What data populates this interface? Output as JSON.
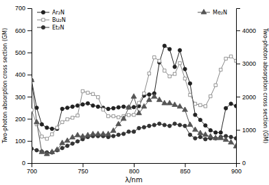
{
  "chart_data": {
    "type": "line",
    "xlabel": "λ/nm",
    "ylabel": "Two-photon absorption cross section (GM)",
    "y2label": "Two-photon absorption cross section (GM)",
    "xlim": [
      700,
      900
    ],
    "xticks": [
      700,
      750,
      800,
      850,
      900
    ],
    "ylim": [
      0,
      700
    ],
    "yticks": [
      0,
      100,
      200,
      300,
      400,
      500,
      600,
      700
    ],
    "y2lim": [
      0,
      4667
    ],
    "y2ticks": [
      0,
      1000,
      2000,
      3000,
      4000
    ],
    "legend": "top-left",
    "x": [
      700,
      705,
      710,
      715,
      720,
      725,
      730,
      735,
      740,
      745,
      750,
      755,
      760,
      765,
      770,
      775,
      780,
      785,
      790,
      795,
      800,
      805,
      810,
      815,
      820,
      825,
      830,
      835,
      840,
      845,
      850,
      855,
      860,
      865,
      870,
      875,
      880,
      885,
      890,
      895,
      900
    ],
    "series": [
      {
        "name": "Ar₂N",
        "color": "#222222",
        "marker": "circle",
        "values": [
          375,
          250,
          175,
          160,
          155,
          155,
          245,
          250,
          255,
          260,
          265,
          270,
          260,
          255,
          250,
          245,
          248,
          252,
          255,
          252,
          253,
          258,
          305,
          310,
          315,
          455,
          530,
          515,
          435,
          510,
          425,
          360,
          218,
          195,
          170,
          148,
          138,
          138,
          248,
          268,
          258
        ]
      },
      {
        "name": "Bu₂N",
        "color": "#888888",
        "marker": "square-open",
        "values": [
          240,
          175,
          120,
          110,
          130,
          160,
          185,
          198,
          205,
          215,
          325,
          318,
          312,
          298,
          242,
          212,
          212,
          207,
          212,
          217,
          218,
          272,
          315,
          405,
          478,
          462,
          418,
          392,
          403,
          452,
          382,
          308,
          268,
          262,
          257,
          302,
          352,
          422,
          472,
          482,
          462
        ]
      },
      {
        "name": "Et₂N",
        "color": "#333333",
        "marker": "circle",
        "values": [
          65,
          58,
          52,
          48,
          48,
          58,
          68,
          78,
          88,
          98,
          108,
          118,
          122,
          122,
          122,
          118,
          122,
          128,
          132,
          142,
          142,
          158,
          162,
          168,
          172,
          178,
          172,
          168,
          178,
          172,
          168,
          128,
          112,
          118,
          108,
          112,
          112,
          118,
          122,
          118,
          112
        ]
      },
      {
        "name": "Me₂N",
        "color": "#555555",
        "marker": "triangle",
        "axis": "y2",
        "values": [
          2500,
          1230,
          330,
          270,
          330,
          400,
          600,
          670,
          770,
          835,
          800,
          835,
          870,
          870,
          870,
          870,
          970,
          1170,
          1330,
          1670,
          2000,
          1500,
          1700,
          1900,
          2000,
          1900,
          1800,
          1800,
          1750,
          1700,
          1600,
          1150,
          1000,
          900,
          850,
          800,
          750,
          750,
          700,
          620,
          500
        ]
      }
    ]
  }
}
